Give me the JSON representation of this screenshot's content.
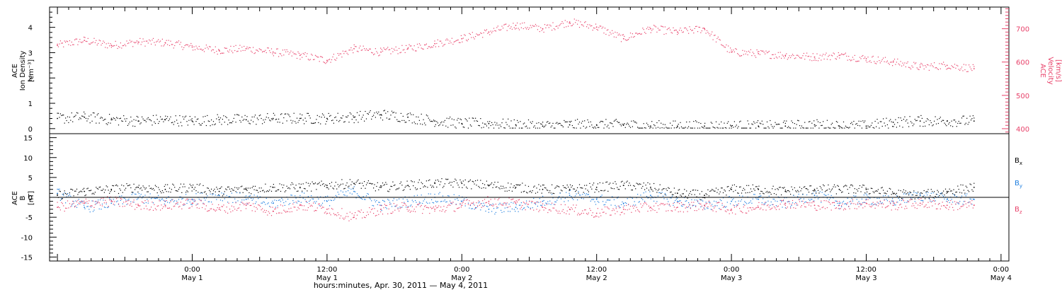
{
  "chart_data": [
    {
      "type": "scatter",
      "panel": "top",
      "left_axis": {
        "label_lines": [
          "ACE",
          "Ion Density"
        ],
        "unit": "[cm⁻³]",
        "range": [
          -0.2,
          4.8
        ],
        "ticks": [
          "0",
          "1",
          "2",
          "3",
          "4"
        ]
      },
      "right_axis": {
        "label_lines": [
          "ACE",
          "Velocity"
        ],
        "unit": "[km/s]",
        "range": [
          385,
          765
        ],
        "ticks": [
          "400",
          "500",
          "600",
          "700"
        ]
      },
      "series": [
        {
          "name": "Ion Density",
          "axis": "left",
          "color": "#000000",
          "x_hours": [
            -12.0,
            -9.6,
            -7.2,
            -4.8,
            -2.4,
            0.0,
            2.4,
            4.8,
            7.2,
            9.6,
            12.0,
            14.4,
            16.8,
            19.2,
            21.6,
            24.0,
            26.4,
            28.8,
            31.2,
            33.6,
            36.0,
            38.4,
            40.8,
            43.2,
            45.6,
            48.0,
            50.4,
            52.8,
            55.4,
            57.6,
            60.0,
            62.4,
            64.8,
            67.2,
            69.6
          ],
          "values": [
            0.4,
            0.45,
            0.35,
            0.3,
            0.35,
            0.3,
            0.35,
            0.35,
            0.4,
            0.4,
            0.4,
            0.45,
            0.55,
            0.45,
            0.3,
            0.2,
            0.2,
            0.15,
            0.1,
            0.15,
            0.15,
            0.15,
            0.1,
            0.1,
            0.1,
            0.1,
            0.1,
            0.1,
            0.15,
            0.1,
            0.1,
            0.25,
            0.3,
            0.3,
            0.3
          ]
        },
        {
          "name": "Velocity",
          "axis": "right",
          "color": "#e8436b",
          "x_hours": [
            -12.0,
            -9.6,
            -7.2,
            -4.8,
            -2.4,
            0.0,
            2.4,
            4.8,
            7.2,
            9.6,
            12.0,
            14.4,
            16.8,
            19.2,
            21.6,
            24.0,
            26.4,
            28.8,
            31.2,
            33.6,
            36.0,
            38.4,
            40.8,
            43.2,
            45.6,
            48.0,
            50.4,
            52.8,
            55.4,
            57.6,
            60.0,
            62.4,
            64.8,
            67.2,
            69.6
          ],
          "values": [
            650,
            665,
            650,
            660,
            658,
            645,
            635,
            640,
            630,
            620,
            605,
            640,
            630,
            640,
            655,
            670,
            690,
            710,
            700,
            720,
            705,
            670,
            700,
            690,
            700,
            630,
            625,
            620,
            615,
            620,
            610,
            600,
            585,
            590,
            580
          ]
        }
      ]
    },
    {
      "type": "scatter",
      "panel": "bottom",
      "left_axis": {
        "label_lines": [
          "ACE",
          "B"
        ],
        "unit": "[nT]",
        "range": [
          -16,
          16
        ],
        "ticks": [
          "-15",
          "-10",
          "-5",
          "0",
          "5",
          "10",
          "15"
        ]
      },
      "reference_line": 0,
      "series": [
        {
          "name": "Bx",
          "legend": {
            "base": "B",
            "sub": "x"
          },
          "color": "#000000",
          "x_hours": [
            -12.0,
            -9.6,
            -7.2,
            -4.8,
            -2.4,
            0.0,
            2.4,
            4.8,
            7.2,
            9.6,
            12.0,
            14.4,
            16.8,
            19.2,
            21.6,
            24.0,
            26.4,
            28.8,
            31.2,
            33.6,
            36.0,
            38.4,
            40.8,
            43.2,
            45.6,
            48.0,
            50.4,
            52.8,
            55.4,
            57.6,
            60.0,
            62.4,
            64.8,
            67.2,
            69.6
          ],
          "values": [
            0.5,
            1.5,
            2,
            2.5,
            2,
            2.5,
            1.5,
            2,
            2.5,
            2.5,
            3,
            3.5,
            2.5,
            3,
            3.5,
            3.5,
            3,
            2.5,
            2,
            2,
            2.5,
            3,
            2.5,
            1,
            0.5,
            2,
            2,
            1.5,
            2,
            2,
            2,
            1,
            0.5,
            1.5,
            2.5
          ]
        },
        {
          "name": "By",
          "legend": {
            "base": "B",
            "sub": "y"
          },
          "color": "#1f7fe0",
          "x_hours": [
            -12.0,
            -9.6,
            -7.2,
            -4.8,
            -2.4,
            0.0,
            2.4,
            4.8,
            7.2,
            9.6,
            12.0,
            14.4,
            16.8,
            19.2,
            21.6,
            24.0,
            26.4,
            28.8,
            31.2,
            33.6,
            36.0,
            38.4,
            40.8,
            43.2,
            45.6,
            48.0,
            50.4,
            52.8,
            55.4,
            57.6,
            60.0,
            62.4,
            64.8,
            67.2,
            69.6
          ],
          "values": [
            1,
            -2.5,
            -1.5,
            0,
            -1,
            -0.5,
            0.5,
            -0.5,
            -1.5,
            0,
            -1,
            1.5,
            -2,
            -1,
            0,
            -1,
            -3,
            -2.5,
            -1,
            0.5,
            -0.5,
            -1.5,
            0.5,
            -1,
            -2,
            -1,
            -0.5,
            -1.5,
            0.5,
            -1.5,
            -0.5,
            -1,
            0.5,
            -0.5,
            -0.5
          ]
        },
        {
          "name": "Bz",
          "legend": {
            "base": "B",
            "sub": "z"
          },
          "color": "#e8436b",
          "x_hours": [
            -12.0,
            -9.6,
            -7.2,
            -4.8,
            -2.4,
            0.0,
            2.4,
            4.8,
            7.2,
            9.6,
            12.0,
            14.4,
            16.8,
            19.2,
            21.6,
            24.0,
            26.4,
            28.8,
            31.2,
            33.6,
            36.0,
            38.4,
            40.8,
            43.2,
            45.6,
            48.0,
            50.4,
            52.8,
            55.4,
            57.6,
            60.0,
            62.4,
            64.8,
            67.2,
            69.6
          ],
          "values": [
            -2.5,
            -1.5,
            -1,
            -2,
            -2,
            -1.5,
            -3,
            -2,
            -3.5,
            -2,
            -3,
            -5,
            -3,
            -2.5,
            -3,
            -2,
            -1,
            -1.5,
            -2.5,
            -3,
            -4,
            -3,
            -2.5,
            -2.5,
            -2,
            -3,
            -2.5,
            -1.5,
            -2,
            -2,
            -1.5,
            -2,
            -1.5,
            -2,
            -2
          ]
        }
      ]
    }
  ],
  "x_axis": {
    "range_hours": [
      -12.7,
      72.7
    ],
    "ticks": [
      {
        "hours": 0,
        "time": "0:00",
        "date": "May 1"
      },
      {
        "hours": 12,
        "time": "12:00",
        "date": "May 1"
      },
      {
        "hours": 24,
        "time": "0:00",
        "date": "May 2"
      },
      {
        "hours": 36,
        "time": "12:00",
        "date": "May 2"
      },
      {
        "hours": 48,
        "time": "0:00",
        "date": "May 3"
      },
      {
        "hours": 60,
        "time": "12:00",
        "date": "May 3"
      },
      {
        "hours": 72,
        "time": "0:00",
        "date": "May 4"
      }
    ],
    "title": "hours:minutes, Apr. 30, 2011 — May  4, 2011"
  }
}
